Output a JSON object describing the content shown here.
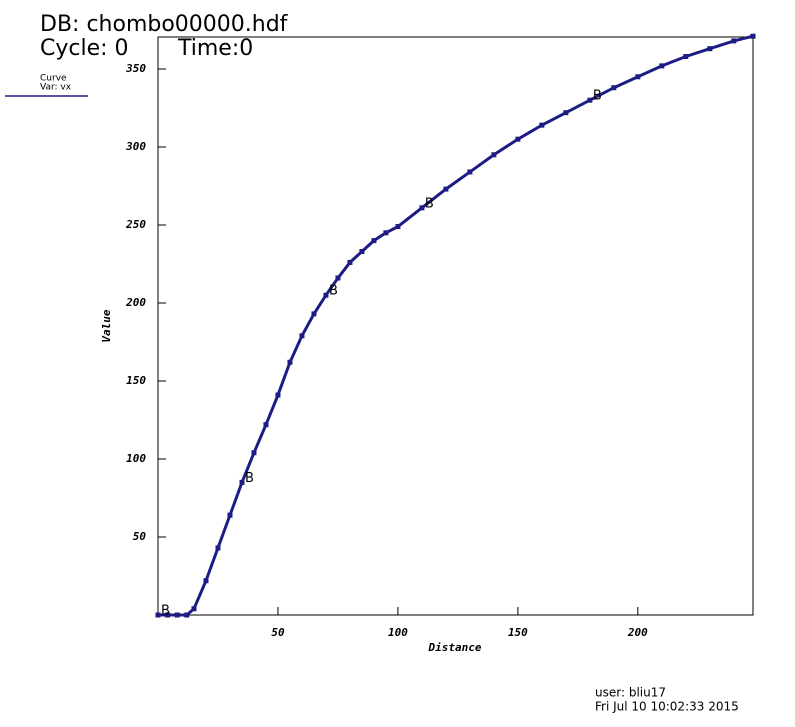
{
  "chart_data": {
    "type": "line",
    "db_label": "DB: chombo00000.hdf",
    "cycle_label": "Cycle: 0",
    "time_label": "Time:0",
    "legend_title": "Curve",
    "legend_var": "Var: vx",
    "xlabel": "Distance",
    "ylabel": "Value",
    "point_label": "B",
    "user_label": "user: bliu17",
    "date_label": "Fri Jul 10 10:02:33 2015",
    "x": [
      0,
      4,
      8,
      12,
      15,
      20,
      25,
      30,
      35,
      40,
      45,
      50,
      55,
      60,
      65,
      70,
      75,
      80,
      85,
      90,
      95,
      100,
      110,
      120,
      130,
      140,
      150,
      160,
      170,
      180,
      190,
      200,
      210,
      220,
      230,
      240,
      248
    ],
    "series": [
      {
        "name": "vx",
        "color": "#1c1c84",
        "values": [
          0,
          0,
          0,
          0,
          4,
          22,
          43,
          64,
          85,
          104,
          122,
          141,
          162,
          179,
          193,
          205,
          216,
          226,
          233,
          240,
          245,
          249,
          261,
          273,
          284,
          295,
          305,
          314,
          322,
          330,
          338,
          345,
          352,
          358,
          363,
          368,
          371
        ]
      }
    ],
    "xlim": [
      0,
      248
    ],
    "ylim": [
      0,
      370.5
    ],
    "xticks": [
      50,
      100,
      150,
      200
    ],
    "yticks": [
      50,
      100,
      150,
      200,
      250,
      300,
      350
    ]
  }
}
